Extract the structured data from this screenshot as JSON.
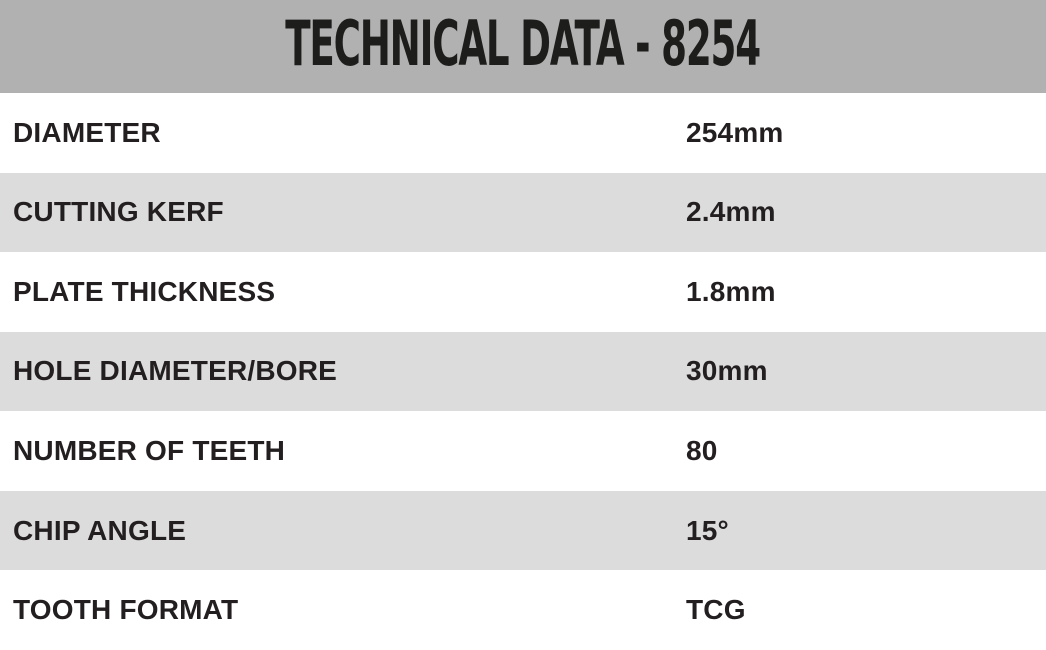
{
  "title": "TECHNICAL DATA - 8254",
  "colors": {
    "header_bg": "#b1b1b1",
    "row_bg": "#ffffff",
    "row_alt_bg": "#dcdcdc",
    "text": "#231f20",
    "title_text": "#1d1d1b"
  },
  "table": {
    "rows": [
      {
        "label": "DIAMETER",
        "value": "254mm"
      },
      {
        "label": "CUTTING KERF",
        "value": "2.4mm"
      },
      {
        "label": "PLATE THICKNESS",
        "value": "1.8mm"
      },
      {
        "label": "HOLE DIAMETER/BORE",
        "value": "30mm"
      },
      {
        "label": "NUMBER OF TEETH",
        "value": "80"
      },
      {
        "label": "CHIP ANGLE",
        "value": "15°"
      },
      {
        "label": "TOOTH FORMAT",
        "value": "TCG"
      }
    ]
  }
}
